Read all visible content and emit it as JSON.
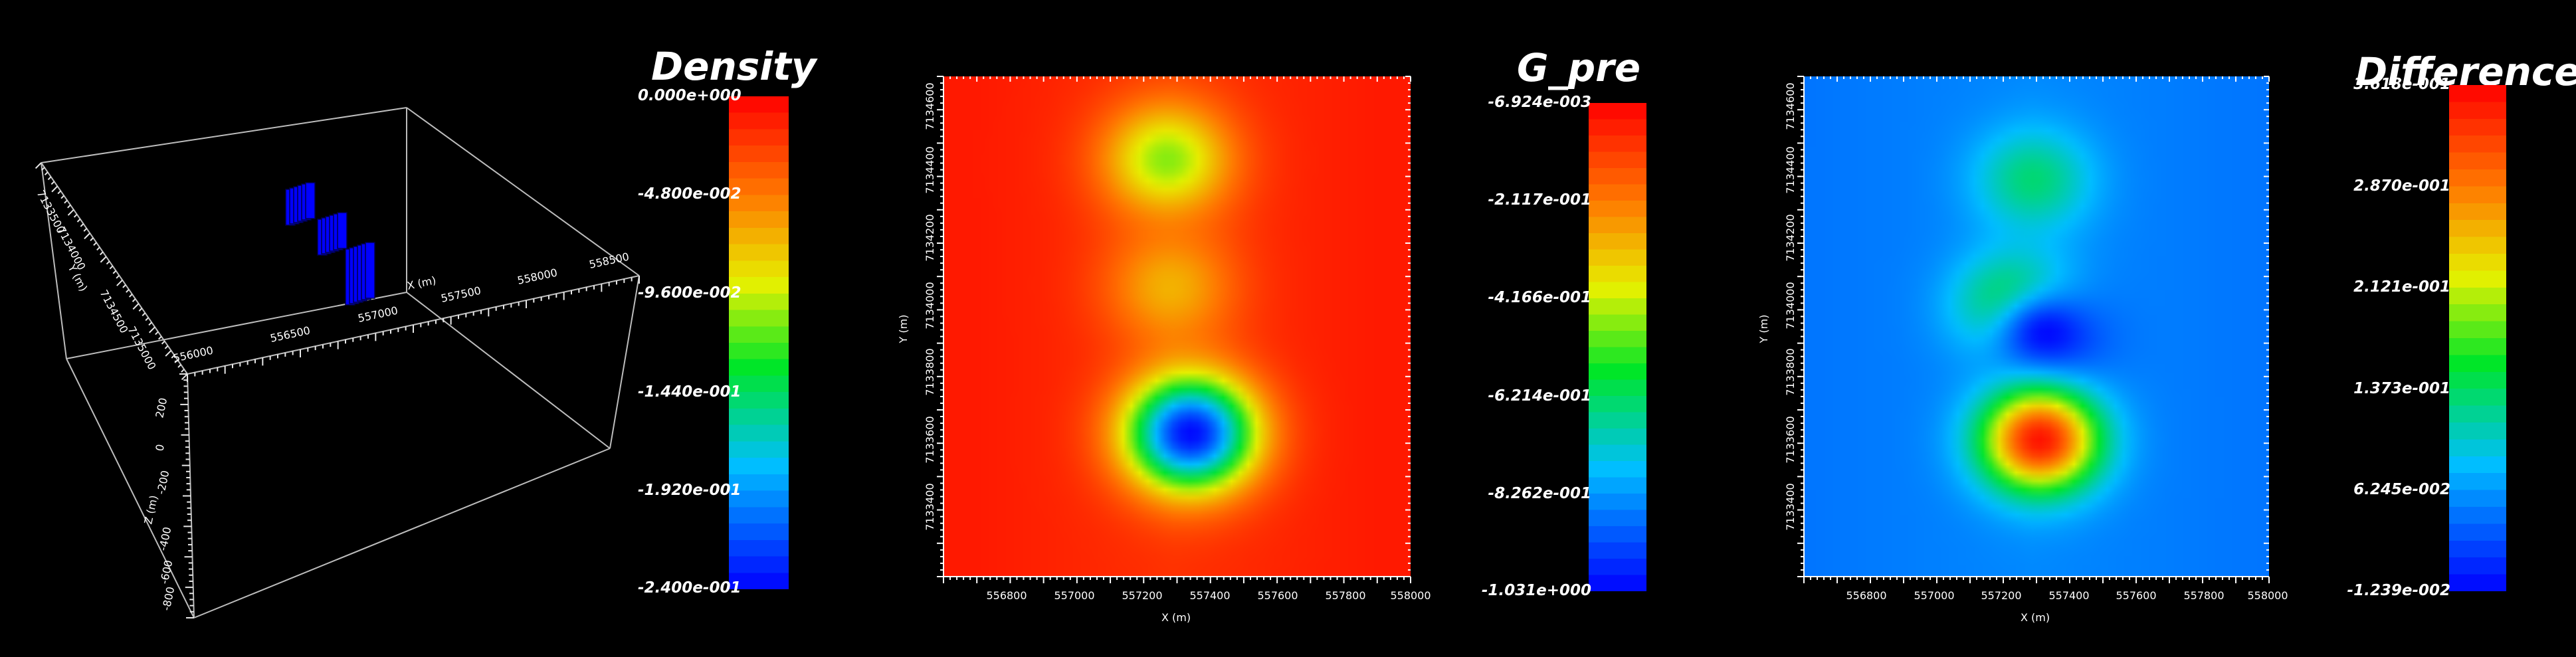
{
  "chart_data": [
    {
      "type": "other",
      "view": "3d-perspective",
      "colorbar": {
        "title": "Density",
        "ticks": [
          "0.000e+000",
          "-4.800e-002",
          "-9.600e-002",
          "-1.440e-001",
          "-1.920e-001",
          "-2.400e-001"
        ],
        "range": [
          -0.24,
          0.0
        ]
      },
      "axis_labels": {
        "x": "X (m)",
        "y": "Y (m)",
        "z": "Z (m)"
      },
      "x_ticks": [
        "556000",
        "556500",
        "557000",
        "557500",
        "558000",
        "558500"
      ],
      "y_ticks": [
        "7133500",
        "7134000",
        "7134500",
        "7135000"
      ],
      "z_ticks": [
        "200",
        "0",
        "-200",
        "-400",
        "-600",
        "-800"
      ],
      "bodies": [
        {
          "x": 556950,
          "y": 7134350,
          "value": -0.24
        },
        {
          "x": 557100,
          "y": 7134100,
          "value": -0.24
        },
        {
          "x": 557250,
          "y": 7133850,
          "value": -0.24
        }
      ]
    },
    {
      "type": "heatmap",
      "colorbar": {
        "title": "G_pre",
        "ticks": [
          "-6.924e-003",
          "-2.117e-001",
          "-4.166e-001",
          "-6.214e-001",
          "-8.262e-001",
          "-1.031e+000"
        ],
        "range": [
          -1.031,
          -0.006924
        ]
      },
      "xlabel": "X (m)",
      "ylabel": "Y (m)",
      "x_ticks": [
        "556800",
        "557000",
        "557200",
        "557400",
        "557600",
        "557800",
        "558000"
      ],
      "y_ticks": [
        "7133400",
        "7133600",
        "7133800",
        "7134000",
        "7134200",
        "7134400",
        "7134600"
      ],
      "xlim": [
        556620,
        558000
      ],
      "ylim": [
        7133210,
        7134710
      ],
      "anomalies": [
        {
          "x": 557280,
          "y": 7134460,
          "value": -0.47
        },
        {
          "x": 557290,
          "y": 7134080,
          "value": -0.3
        },
        {
          "x": 557350,
          "y": 7133640,
          "value": -1.02
        }
      ]
    },
    {
      "type": "heatmap",
      "colorbar": {
        "title": "Difference",
        "ticks": [
          "3.618e-001",
          "2.870e-001",
          "2.121e-001",
          "1.373e-001",
          "6.245e-002",
          "-1.239e-002"
        ],
        "range": [
          -0.01239,
          0.3618
        ]
      },
      "xlabel": "X (m)",
      "ylabel": "Y (m)",
      "x_ticks": [
        "556800",
        "557000",
        "557200",
        "557400",
        "557600",
        "557800",
        "558000"
      ],
      "y_ticks": [
        "7133400",
        "7133600",
        "7133800",
        "7134000",
        "7134200",
        "7134400",
        "7134600"
      ],
      "xlim": [
        556620,
        558000
      ],
      "ylim": [
        7133210,
        7134710
      ],
      "anomalies": [
        {
          "x": 557300,
          "y": 7134400,
          "value": 0.13
        },
        {
          "x": 557250,
          "y": 7134020,
          "value": 0.18
        },
        {
          "x": 557340,
          "y": 7133930,
          "value": -0.012
        },
        {
          "x": 557320,
          "y": 7133620,
          "value": 0.35
        }
      ]
    }
  ]
}
